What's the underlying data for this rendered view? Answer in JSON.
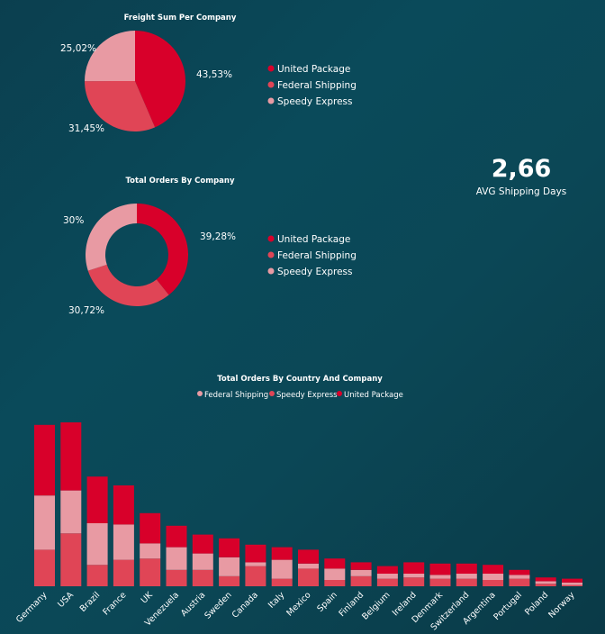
{
  "colors": {
    "united_package": "#d8002a",
    "federal_shipping": "#e04556",
    "speedy_express": "#e89aa3",
    "text": "#ffffff"
  },
  "kpi": {
    "value": "2,66",
    "label": "AVG Shipping Days"
  },
  "chart_data": [
    {
      "type": "pie",
      "title": "Freight Sum Per Company",
      "legend_position": "right",
      "slices": [
        {
          "name": "United Package",
          "value": 43.53,
          "label": "43,53%"
        },
        {
          "name": "Federal Shipping",
          "value": 31.45,
          "label": "31,45%"
        },
        {
          "name": "Speedy Express",
          "value": 25.02,
          "label": "25,02%"
        }
      ]
    },
    {
      "type": "pie",
      "donut": true,
      "title": "Total Orders By Company",
      "legend_position": "right",
      "slices": [
        {
          "name": "United Package",
          "value": 39.28,
          "label": "39,28%"
        },
        {
          "name": "Federal Shipping",
          "value": 30.72,
          "label": "30,72%"
        },
        {
          "name": "Speedy Express",
          "value": 30.0,
          "label": "30%"
        }
      ]
    },
    {
      "type": "bar",
      "stacked": true,
      "title": "Total Orders By Country And Company",
      "legend_position": "top",
      "legend": [
        "Federal Shipping",
        "Speedy Express",
        "United Package"
      ],
      "categories": [
        "Germany",
        "USA",
        "Brazil",
        "France",
        "UK",
        "Venezuela",
        "Austria",
        "Sweden",
        "Canada",
        "Italy",
        "Mexico",
        "Spain",
        "Finland",
        "Belgium",
        "Ireland",
        "Denmark",
        "Switzerland",
        "Argentina",
        "Portugal",
        "Poland",
        "Norway"
      ],
      "series": [
        {
          "name": "Federal Shipping",
          "values": [
            29,
            42,
            17,
            21,
            22,
            13,
            13,
            8,
            16,
            6,
            14,
            5,
            8,
            6,
            7,
            6,
            6,
            5,
            6,
            2,
            1
          ]
        },
        {
          "name": "Speedy Express",
          "values": [
            43,
            34,
            33,
            28,
            12,
            18,
            13,
            15,
            3,
            15,
            4,
            9,
            5,
            4,
            3,
            3,
            4,
            5,
            3,
            2,
            2
          ]
        },
        {
          "name": "United Package",
          "values": [
            56,
            54,
            37,
            31,
            24,
            17,
            15,
            15,
            14,
            10,
            11,
            8,
            6,
            6,
            9,
            9,
            8,
            7,
            4,
            3,
            3
          ]
        }
      ],
      "ylim": [
        0,
        130
      ]
    }
  ]
}
